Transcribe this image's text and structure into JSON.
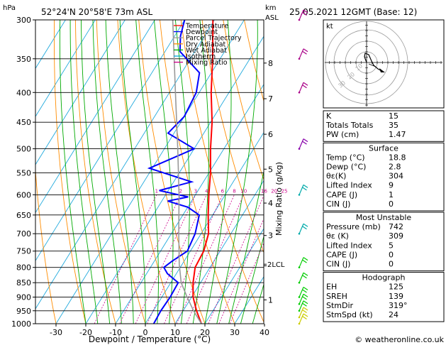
{
  "header": {
    "unit_hpa": "hPa",
    "location": "52°24'N  20°58'E  73m  ASL",
    "km_label": "km",
    "asl_label": "ASL",
    "datetime": "25.05.2021  12GMT  (Base: 12)"
  },
  "chart_data": {
    "type": "line",
    "title": "52°24'N  20°58'E  73m  ASL",
    "xlabel": "Dewpoint / Temperature (°C)",
    "ylabel": "hPa",
    "right_axis_label": "Mixing Ratio (g/kg)",
    "x_ticks": [
      -30,
      -20,
      -10,
      0,
      10,
      20,
      30,
      40
    ],
    "xlim": [
      -35,
      40
    ],
    "ylim": [
      1000,
      300
    ],
    "y_scale": "log",
    "pressure_ticks": [
      300,
      350,
      400,
      450,
      500,
      550,
      600,
      650,
      700,
      750,
      800,
      850,
      900,
      950,
      1000
    ],
    "km_ticks": [
      {
        "km": "1",
        "p": 910
      },
      {
        "km": "2",
        "p": 795
      },
      {
        "km": "3",
        "p": 705
      },
      {
        "km": "4",
        "p": 620
      },
      {
        "km": "5",
        "p": 542
      },
      {
        "km": "6",
        "p": 472
      },
      {
        "km": "7",
        "p": 410
      },
      {
        "km": "8",
        "p": 356
      }
    ],
    "lcl": {
      "label": "LCL",
      "km": "2",
      "p": 790
    },
    "mixing_ratio_labels": [
      "1",
      "2",
      "3",
      "4",
      "6",
      "8",
      "10",
      "16",
      "20",
      "25"
    ],
    "legend": {
      "placement": "top",
      "entries": [
        {
          "name": "Temperature",
          "color": "#ff0000"
        },
        {
          "name": "Dewpoint",
          "color": "#0000ff"
        },
        {
          "name": "Parcel Trajectory",
          "color": "#999999"
        },
        {
          "name": "Dry Adiabat",
          "color": "#ff8c00"
        },
        {
          "name": "Wet Adiabat",
          "color": "#00aa00"
        },
        {
          "name": "Isotherm",
          "color": "#00aadd"
        },
        {
          "name": "Mixing Ratio",
          "color": "#cc0088"
        }
      ]
    },
    "series": [
      {
        "name": "Temperature",
        "color": "#ff0000",
        "points": [
          [
            1000,
            18.8
          ],
          [
            950,
            14.5
          ],
          [
            900,
            10.5
          ],
          [
            850,
            7.5
          ],
          [
            800,
            5.0
          ],
          [
            750,
            4.5
          ],
          [
            700,
            2.5
          ],
          [
            650,
            -1.5
          ],
          [
            600,
            -5.5
          ],
          [
            550,
            -9.5
          ],
          [
            500,
            -14.5
          ],
          [
            450,
            -19.5
          ],
          [
            400,
            -26.0
          ],
          [
            350,
            -32.5
          ],
          [
            300,
            -40.5
          ]
        ]
      },
      {
        "name": "Dewpoint",
        "color": "#0000ff",
        "points": [
          [
            1000,
            2.8
          ],
          [
            950,
            2.5
          ],
          [
            900,
            2.8
          ],
          [
            850,
            2.5
          ],
          [
            820,
            -3.0
          ],
          [
            800,
            -5.5
          ],
          [
            780,
            -4.0
          ],
          [
            750,
            -1.0
          ],
          [
            700,
            -2.0
          ],
          [
            650,
            -4.5
          ],
          [
            630,
            -10.0
          ],
          [
            615,
            -18.0
          ],
          [
            605,
            -12.0
          ],
          [
            590,
            -23.0
          ],
          [
            570,
            -14.0
          ],
          [
            540,
            -31.0
          ],
          [
            500,
            -20.0
          ],
          [
            470,
            -32.0
          ],
          [
            440,
            -30.0
          ],
          [
            400,
            -31.0
          ],
          [
            370,
            -34.0
          ],
          [
            340,
            -45.0
          ],
          [
            320,
            -48.0
          ],
          [
            300,
            -50.0
          ]
        ]
      },
      {
        "name": "Parcel Trajectory",
        "color": "#999999",
        "points": [
          [
            1000,
            18.8
          ],
          [
            950,
            13.5
          ],
          [
            900,
            8.5
          ],
          [
            850,
            3.5
          ],
          [
            790,
            -1.0
          ],
          [
            700,
            -7.5
          ],
          [
            600,
            -15.5
          ],
          [
            500,
            -25.5
          ],
          [
            400,
            -38.0
          ],
          [
            300,
            -54.0
          ]
        ]
      }
    ],
    "wind_barbs": [
      {
        "p": 1000,
        "color": "#cccc00"
      },
      {
        "p": 975,
        "color": "#cccc00"
      },
      {
        "p": 950,
        "color": "#00cc00"
      },
      {
        "p": 925,
        "color": "#00cc00"
      },
      {
        "p": 900,
        "color": "#00cc00"
      },
      {
        "p": 850,
        "color": "#00cc00"
      },
      {
        "p": 800,
        "color": "#00cc00"
      },
      {
        "p": 700,
        "color": "#00aaaa"
      },
      {
        "p": 600,
        "color": "#00aaaa"
      },
      {
        "p": 500,
        "color": "#8800aa"
      },
      {
        "p": 400,
        "color": "#aa0088"
      },
      {
        "p": 350,
        "color": "#aa0088"
      },
      {
        "p": 300,
        "color": "#aa0088"
      }
    ]
  },
  "hodograph": {
    "label": "kt",
    "ring_labels": [
      "10",
      "20",
      "30"
    ]
  },
  "indices": {
    "rows": [
      {
        "label": "K",
        "value": "15"
      },
      {
        "label": "Totals Totals",
        "value": "35"
      },
      {
        "label": "PW (cm)",
        "value": "1.47"
      }
    ]
  },
  "surface": {
    "title": "Surface",
    "rows": [
      {
        "label": "Temp (°C)",
        "value": "18.8"
      },
      {
        "label": "Dewp (°C)",
        "value": "2.8"
      },
      {
        "label": "θε(K)",
        "value": "304"
      },
      {
        "label": "Lifted Index",
        "value": "9"
      },
      {
        "label": "CAPE (J)",
        "value": "1"
      },
      {
        "label": "CIN (J)",
        "value": "0"
      }
    ]
  },
  "most_unstable": {
    "title": "Most Unstable",
    "rows": [
      {
        "label": "Pressure (mb)",
        "value": "742"
      },
      {
        "label": "θε (K)",
        "value": "309"
      },
      {
        "label": "Lifted Index",
        "value": "5"
      },
      {
        "label": "CAPE (J)",
        "value": "0"
      },
      {
        "label": "CIN (J)",
        "value": "0"
      }
    ]
  },
  "hodograph_table": {
    "title": "Hodograph",
    "rows": [
      {
        "label": "EH",
        "value": "125"
      },
      {
        "label": "SREH",
        "value": "139"
      },
      {
        "label": "StmDir",
        "value": "319°"
      },
      {
        "label": "StmSpd (kt)",
        "value": "24"
      }
    ]
  },
  "footer": {
    "copyright": "© weatheronline.co.uk"
  }
}
